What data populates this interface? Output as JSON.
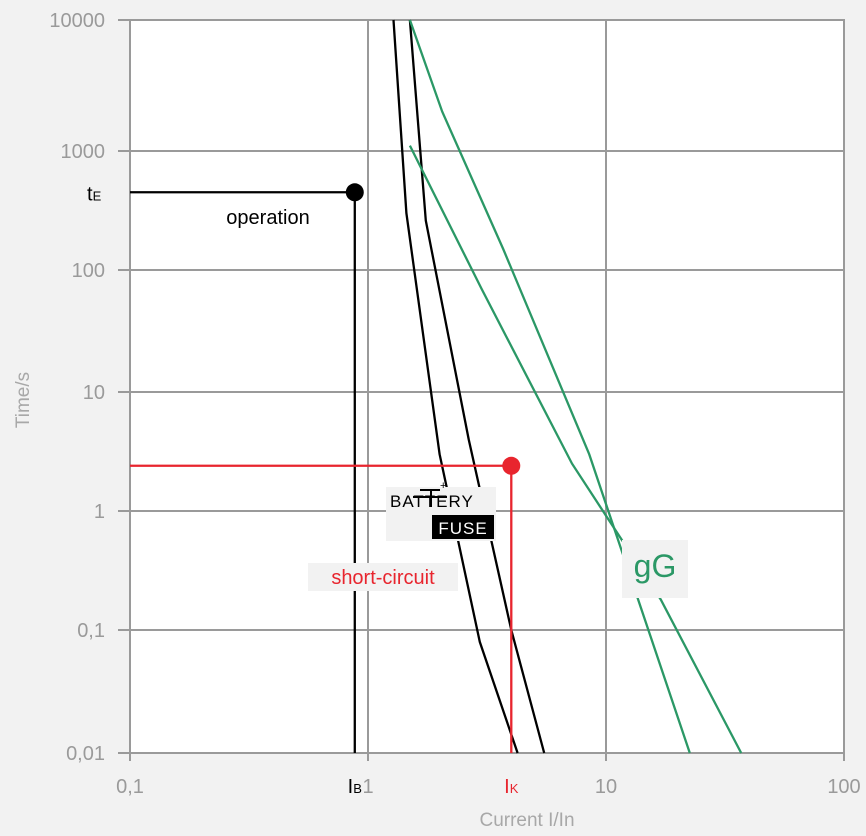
{
  "chart_data": {
    "type": "line",
    "x_scale": "log",
    "y_scale": "log",
    "xlim": [
      0.1,
      100
    ],
    "ylim": [
      0.01,
      10000
    ],
    "xlabel": "Current I/In",
    "ylabel": "Time/s",
    "x_ticks": [
      "0,1",
      "1",
      "10",
      "100"
    ],
    "y_ticks": [
      "0,01",
      "0,1",
      "1",
      "10",
      "100",
      "1000",
      "10000"
    ],
    "grid": true,
    "series": [
      {
        "name": "battery-fuse-lower",
        "color": "#000000",
        "points": [
          [
            1.28,
            10000
          ],
          [
            1.45,
            300
          ],
          [
            2.0,
            3.0
          ],
          [
            2.95,
            0.08
          ],
          [
            4.25,
            0.01
          ]
        ]
      },
      {
        "name": "battery-fuse-upper",
        "color": "#000000",
        "points": [
          [
            1.5,
            10000
          ],
          [
            1.75,
            260
          ],
          [
            2.65,
            4.0
          ],
          [
            4.0,
            0.1
          ],
          [
            5.5,
            0.01
          ]
        ]
      },
      {
        "name": "gG",
        "color": "#2b9866",
        "points": [
          [
            1.5,
            10000
          ],
          [
            2.05,
            2000
          ],
          [
            3.7,
            150
          ],
          [
            8.5,
            3.0
          ],
          [
            22.5,
            0.01
          ]
        ]
      },
      {
        "name": "gG",
        "color": "#2b9866",
        "points": [
          [
            1.5,
            1100
          ],
          [
            3.0,
            70
          ],
          [
            7.2,
            2.5
          ],
          [
            17.0,
            0.18
          ],
          [
            37.0,
            0.01
          ]
        ]
      }
    ],
    "markers": [
      {
        "label_main": "t",
        "label_sub": "E",
        "y": 450,
        "x": 0.88,
        "color": "#000000"
      },
      {
        "label_main": "I",
        "label_sub": "B",
        "x": 0.88,
        "color": "#000000"
      },
      {
        "label_main": "I",
        "label_sub": "K",
        "x": 4.0,
        "y": 2.4,
        "color": "#e8252e"
      }
    ],
    "annotations": {
      "operation": "operation",
      "short_circuit": "short-circuit",
      "gG": "gG",
      "logo_top": "BATTERY",
      "logo_bottom": "FUSE"
    },
    "colors": {
      "black": "#000000",
      "green": "#2b9866",
      "red": "#e8252e",
      "grid": "#9a9a9a"
    }
  }
}
